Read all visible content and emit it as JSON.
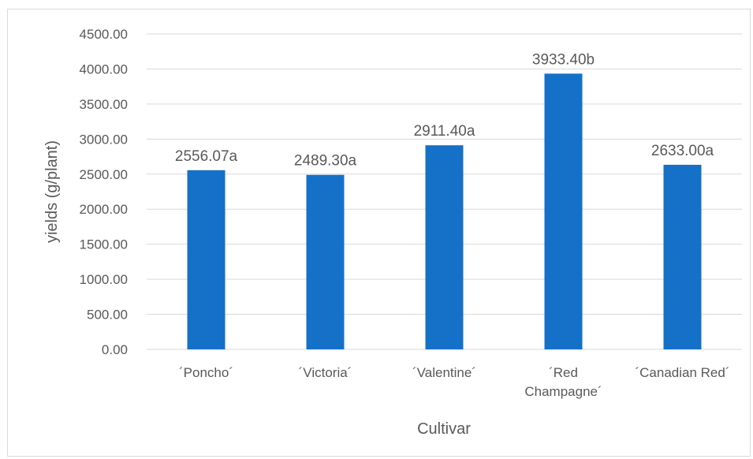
{
  "chart_data": {
    "type": "bar",
    "categories": [
      "´Poncho´",
      "´Victoria´",
      "´Valentine´",
      "´Red Champagne´",
      "´Canadian Red´"
    ],
    "values": [
      2556.07,
      2489.3,
      2911.4,
      3933.4,
      2633.0
    ],
    "data_labels": [
      "2556.07a",
      "2489.30a",
      "2911.40a",
      "3933.40b",
      "2633.00a"
    ],
    "category_label_lines": [
      [
        "´Poncho´"
      ],
      [
        "´Victoria´"
      ],
      [
        "´Valentine´"
      ],
      [
        "´Red",
        "Champagne´"
      ],
      [
        "´Canadian Red´"
      ]
    ],
    "xlabel": "Cultivar",
    "ylabel": "yields (g/plant)",
    "ylim": [
      0,
      4500
    ],
    "yticks": [
      0,
      500,
      1000,
      1500,
      2000,
      2500,
      3000,
      3500,
      4000,
      4500
    ],
    "ytick_labels": [
      "0.00",
      "500.00",
      "1000.00",
      "1500.00",
      "2000.00",
      "2500.00",
      "3000.00",
      "3500.00",
      "4000.00",
      "4500.00"
    ],
    "grid": true,
    "legend": "none",
    "colors": {
      "bar": "#1570C8",
      "grid": "#d9d9d9",
      "text": "#595959"
    }
  }
}
